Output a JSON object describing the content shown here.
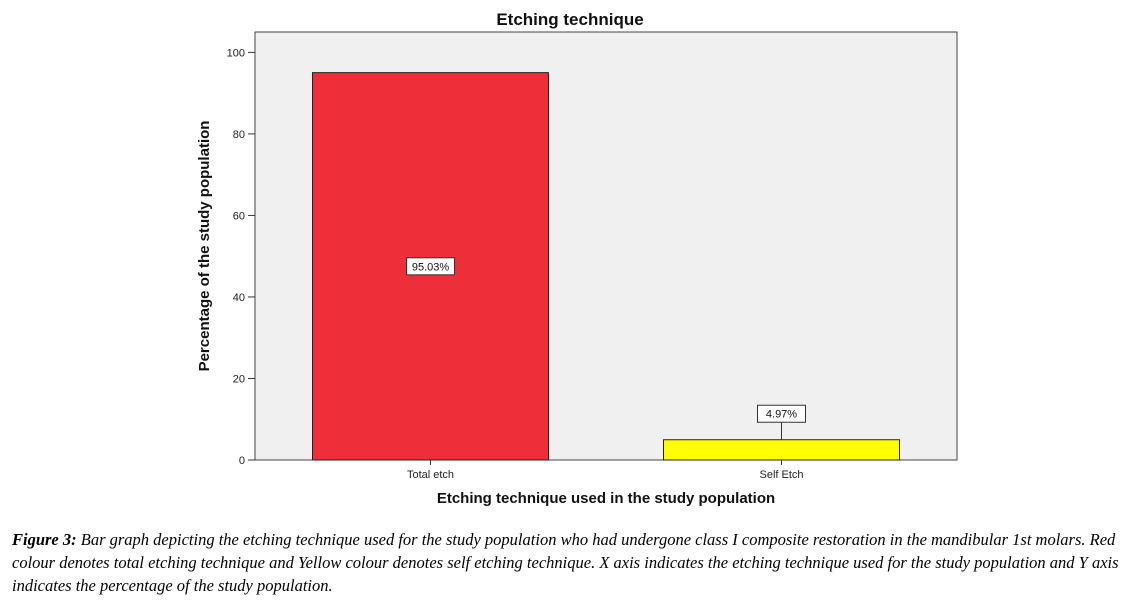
{
  "chart_data": {
    "type": "bar",
    "title": "Etching technique",
    "xlabel": "Etching technique used in the study population",
    "ylabel": "Percentage of the study population",
    "categories": [
      "Total etch",
      "Self Etch"
    ],
    "values": [
      95.03,
      4.97
    ],
    "data_labels": [
      "95.03%",
      "4.97%"
    ],
    "colors": [
      "#ee2f3a",
      "#ffff00"
    ],
    "plot_background": "#f0f0f0",
    "ylim": [
      0,
      105
    ],
    "yticks": [
      0,
      20,
      40,
      60,
      80,
      100
    ],
    "grid": false,
    "legend": "none"
  },
  "caption": {
    "label": "Figure 3:",
    "text": " Bar graph depicting the etching technique used for the study population who had undergone class I composite restoration in the mandibular 1st molars. Red colour denotes total etching technique and Yellow colour denotes self etching technique. X axis indicates the etching technique used for the study population and Y axis indicates the percentage of the study population."
  }
}
